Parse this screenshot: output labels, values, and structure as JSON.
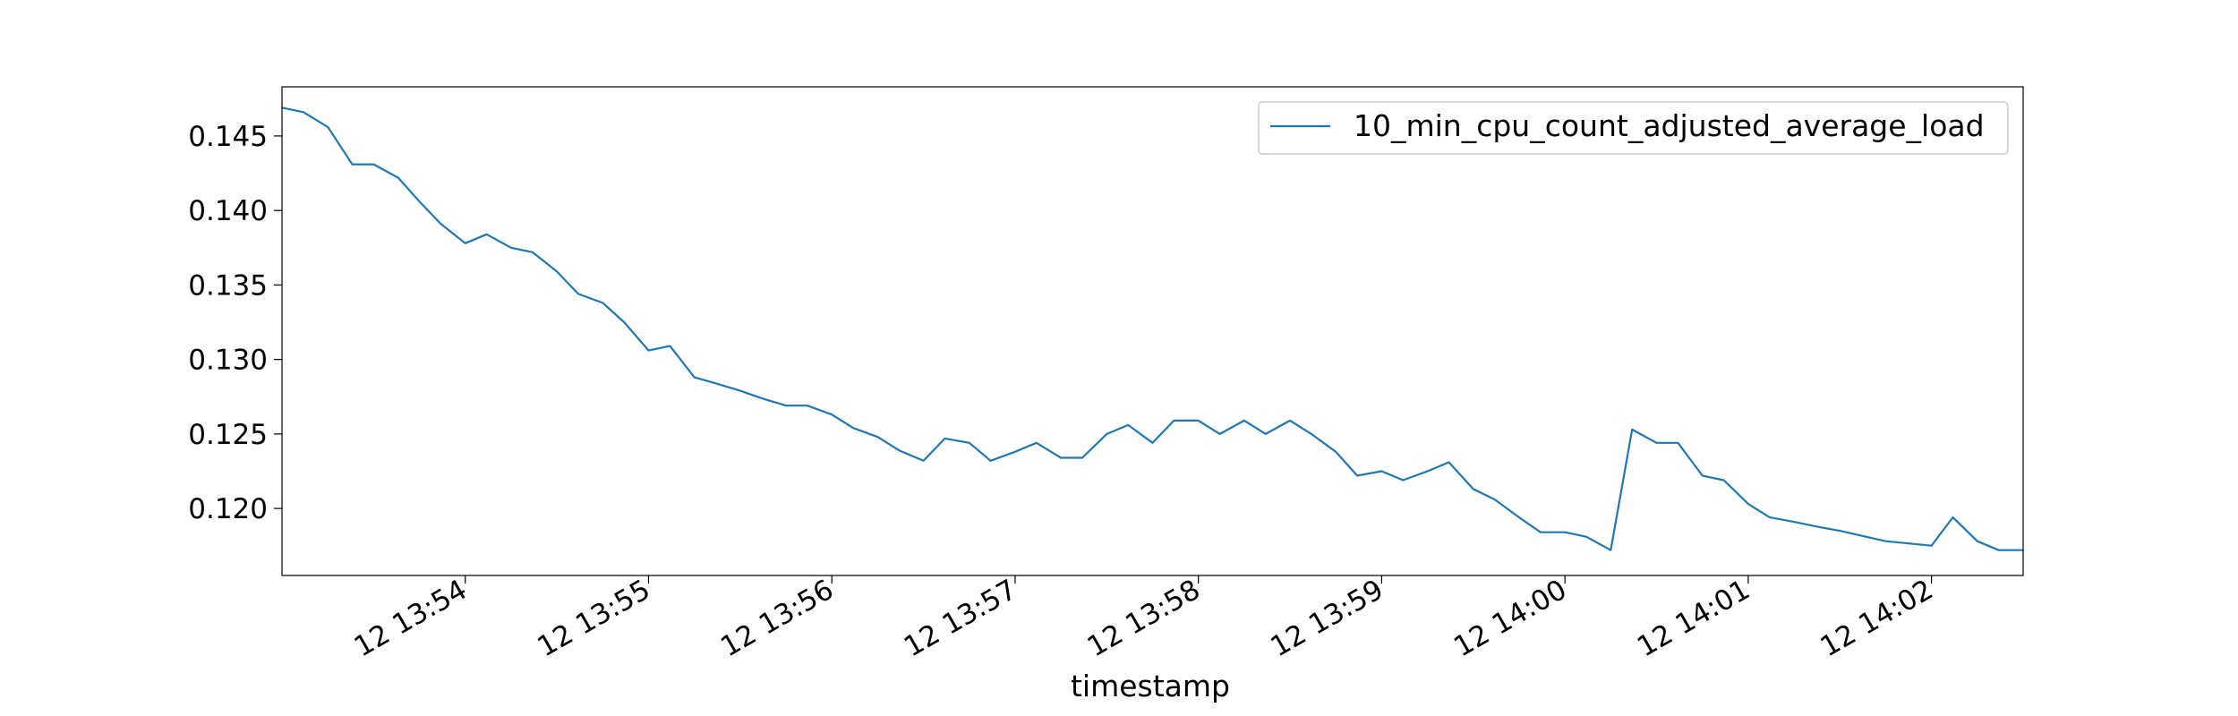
{
  "chart_data": {
    "type": "line",
    "title": "",
    "xlabel": "timestamp",
    "ylabel": "",
    "x_tick_labels": [
      "12 13:54",
      "12 13:55",
      "12 13:56",
      "12 13:57",
      "12 13:58",
      "12 13:59",
      "12 14:00",
      "12 14:01",
      "12 14:02"
    ],
    "y_tick_labels": [
      "0.120",
      "0.125",
      "0.130",
      "0.135",
      "0.140",
      "0.145"
    ],
    "y_ticks": [
      0.12,
      0.125,
      0.13,
      0.135,
      0.14,
      0.145
    ],
    "ylim": [
      0.1155,
      0.1483
    ],
    "grid": false,
    "legend_position": "top-right",
    "colors": {
      "series": "#1f77b4"
    },
    "series": [
      {
        "name": "10_min_cpu_count_adjusted_average_load",
        "x": [
          "13:53:00",
          "13:53:07",
          "13:53:15",
          "13:53:23",
          "13:53:30",
          "13:53:38",
          "13:53:45",
          "13:53:52",
          "13:54:00",
          "13:54:07",
          "13:54:15",
          "13:54:22",
          "13:54:30",
          "13:54:37",
          "13:54:45",
          "13:54:52",
          "13:55:00",
          "13:55:07",
          "13:55:15",
          "13:55:22",
          "13:55:30",
          "13:55:37",
          "13:55:45",
          "13:55:52",
          "13:56:00",
          "13:56:07",
          "13:56:15",
          "13:56:22",
          "13:56:30",
          "13:56:37",
          "13:56:45",
          "13:56:52",
          "13:57:00",
          "13:57:07",
          "13:57:15",
          "13:57:22",
          "13:57:30",
          "13:57:37",
          "13:57:45",
          "13:57:52",
          "13:58:00",
          "13:58:07",
          "13:58:15",
          "13:58:22",
          "13:58:30",
          "13:58:37",
          "13:58:45",
          "13:58:52",
          "13:59:00",
          "13:59:07",
          "13:59:15",
          "13:59:22",
          "13:59:30",
          "13:59:37",
          "13:59:45",
          "13:59:52",
          "14:00:00",
          "14:00:07",
          "14:00:15",
          "14:00:22",
          "14:00:30",
          "14:00:37",
          "14:00:45",
          "14:00:52",
          "14:01:00",
          "14:01:07",
          "14:01:15",
          "14:01:22",
          "14:01:30",
          "14:01:45",
          "14:02:00",
          "14:02:07",
          "14:02:15",
          "14:02:22",
          "14:02:30"
        ],
        "y": [
          0.1469,
          0.1466,
          0.1456,
          0.1431,
          0.1431,
          0.1422,
          0.1406,
          0.1391,
          0.1378,
          0.1384,
          0.1375,
          0.1372,
          0.1359,
          0.1344,
          0.1338,
          0.1325,
          0.1306,
          0.1309,
          0.1288,
          0.1284,
          0.1279,
          0.1274,
          0.1269,
          0.1269,
          0.1263,
          0.1254,
          0.1248,
          0.1239,
          0.1232,
          0.1247,
          0.1244,
          0.1232,
          0.1238,
          0.1244,
          0.1234,
          0.1234,
          0.125,
          0.1256,
          0.1244,
          0.1259,
          0.1259,
          0.125,
          0.1259,
          0.125,
          0.1259,
          0.125,
          0.1238,
          0.1222,
          0.1225,
          0.1219,
          0.1225,
          0.1231,
          0.1213,
          0.1206,
          0.1194,
          0.1184,
          0.1184,
          0.1181,
          0.1172,
          0.1253,
          0.1244,
          0.1244,
          0.1222,
          0.1219,
          0.1203,
          0.1194,
          0.1191,
          0.1188,
          0.1185,
          0.1178,
          0.1175,
          0.1194,
          0.1178,
          0.1172,
          0.1172
        ]
      }
    ]
  }
}
